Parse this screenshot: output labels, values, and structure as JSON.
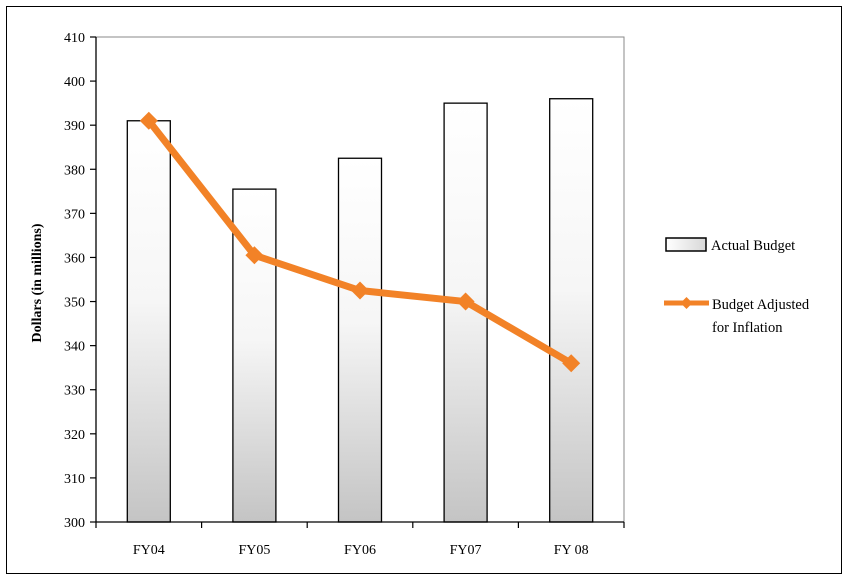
{
  "chart_data": {
    "type": "bar",
    "categories": [
      "FY04",
      "FY05",
      "FY06",
      "FY07",
      "FY 08"
    ],
    "ylabel": "Dollars (in millions)",
    "xlabel": "",
    "ylim": [
      300,
      410
    ],
    "yticks": [
      300,
      310,
      320,
      330,
      340,
      350,
      360,
      370,
      380,
      390,
      400,
      410
    ],
    "series": [
      {
        "name": "Actual Budget",
        "kind": "bar",
        "values": [
          391,
          375.5,
          382.5,
          395,
          396
        ]
      },
      {
        "name": "Budget Adjusted for Inflation",
        "kind": "line",
        "values": [
          391,
          360.5,
          352.5,
          350,
          336
        ],
        "color": "#F28227"
      }
    ],
    "legend": {
      "placement": "right",
      "items": [
        {
          "lines": [
            "Actual Budget"
          ]
        },
        {
          "lines": [
            "Budget Adjusted",
            "for Inflation"
          ]
        }
      ]
    },
    "grid": false,
    "colors": {
      "line": "#F28227",
      "bar_top": "#ffffff",
      "bar_bottom": "#c4c4c4"
    }
  }
}
